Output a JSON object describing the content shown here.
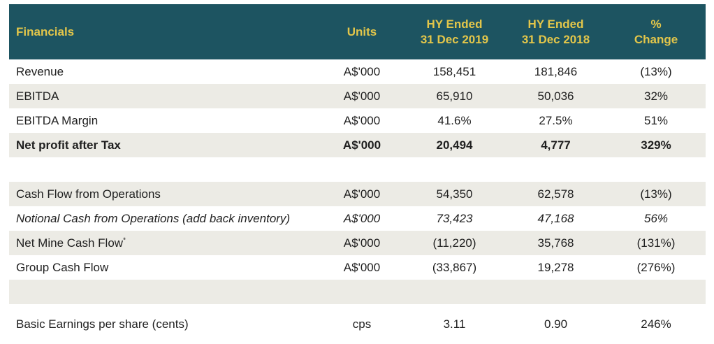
{
  "header": {
    "financials": "Financials",
    "units": "Units",
    "hy2019": [
      "HY Ended",
      "31 Dec 2019"
    ],
    "hy2018": [
      "HY Ended",
      "31 Dec 2018"
    ],
    "change": [
      "%",
      "Change"
    ]
  },
  "rows": [
    {
      "label": "Revenue",
      "units": "A$'000",
      "hy2019": "158,451",
      "hy2018": "181,846",
      "change": "(13%)"
    },
    {
      "label": "EBITDA",
      "units": "A$'000",
      "hy2019": "65,910",
      "hy2018": "50,036",
      "change": "32%"
    },
    {
      "label": "EBITDA Margin",
      "units": "A$'000",
      "hy2019": "41.6%",
      "hy2018": "27.5%",
      "change": "51%"
    },
    {
      "label": "Net profit after Tax",
      "units": "A$'000",
      "hy2019": "20,494",
      "hy2018": "4,777",
      "change": "329%"
    },
    {
      "label": "Cash Flow from Operations",
      "units": "A$'000",
      "hy2019": "54,350",
      "hy2018": "62,578",
      "change": "(13%)"
    },
    {
      "label": "Notional Cash from Operations (add back inventory)",
      "units": "A$'000",
      "hy2019": "73,423",
      "hy2018": "47,168",
      "change": "56%"
    },
    {
      "label": "Net Mine Cash Flow",
      "label_sup": "*",
      "units": "A$'000",
      "hy2019": "(11,220)",
      "hy2018": "35,768",
      "change": "(131%)"
    },
    {
      "label": "Group Cash Flow",
      "units": "A$'000",
      "hy2019": "(33,867)",
      "hy2018": "19,278",
      "change": "(276%)"
    },
    {
      "label": "Basic Earnings per share (cents)",
      "units": "cps",
      "hy2019": "3.11",
      "hy2018": "0.90",
      "change": "246%"
    }
  ],
  "colors": {
    "header_bg": "#1d5461",
    "header_text": "#e3c64a",
    "shaded_row": "#ecebe5"
  }
}
